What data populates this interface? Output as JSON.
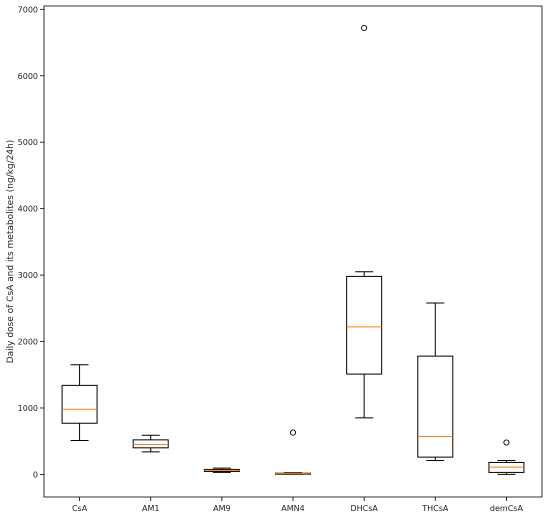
{
  "chart_data": {
    "type": "box",
    "title": "",
    "xlabel": "",
    "ylabel": "Daily dose of CsA and its metabolites (ng/kg/24h)",
    "ylim": [
      -340,
      7050
    ],
    "y_ticks": [
      0,
      1000,
      2000,
      3000,
      4000,
      5000,
      6000,
      7000
    ],
    "categories": [
      "CsA",
      "AM1",
      "AM9",
      "AMN4",
      "DHCsA",
      "THCsA",
      "demCsA"
    ],
    "series": [
      {
        "category": "CsA",
        "whisker_low": 510,
        "q1": 770,
        "median": 980,
        "q3": 1340,
        "whisker_high": 1650,
        "outliers": []
      },
      {
        "category": "AM1",
        "whisker_low": 340,
        "q1": 400,
        "median": 450,
        "q3": 520,
        "whisker_high": 590,
        "outliers": []
      },
      {
        "category": "AM9",
        "whisker_low": 30,
        "q1": 45,
        "median": 60,
        "q3": 75,
        "whisker_high": 95,
        "outliers": []
      },
      {
        "category": "AMN4",
        "whisker_low": 5,
        "q1": 8,
        "median": 12,
        "q3": 18,
        "whisker_high": 25,
        "outliers": [
          630
        ]
      },
      {
        "category": "DHCsA",
        "whisker_low": 850,
        "q1": 1510,
        "median": 2220,
        "q3": 2980,
        "whisker_high": 3050,
        "outliers": [
          6720
        ]
      },
      {
        "category": "THCsA",
        "whisker_low": 210,
        "q1": 260,
        "median": 570,
        "q3": 1780,
        "whisker_high": 2580,
        "outliers": []
      },
      {
        "category": "demCsA",
        "whisker_low": 0,
        "q1": 30,
        "median": 110,
        "q3": 180,
        "whisker_high": 210,
        "outliers": [
          480
        ]
      }
    ],
    "colors": {
      "box": "#000000",
      "median": "#ff7f0e",
      "outlier": "#000000"
    },
    "grid": false,
    "legend": "none"
  }
}
